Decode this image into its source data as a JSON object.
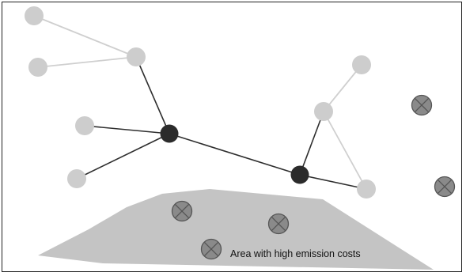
{
  "colors": {
    "frame": "#222222",
    "area": "#c4c4c4",
    "light_node": "#cdcdcd",
    "light_edge": "#cfcfcf",
    "dark_node": "#2b2b2b",
    "dark_edge": "#2e2e2e",
    "emission_fill": "#8a8a8a",
    "emission_stroke": "#555555"
  },
  "area": {
    "label": "Area with high emission costs"
  },
  "nodes": [
    {
      "id": "n1",
      "kind": "light"
    },
    {
      "id": "n2",
      "kind": "light"
    },
    {
      "id": "n3",
      "kind": "light"
    },
    {
      "id": "n4",
      "kind": "light"
    },
    {
      "id": "n5",
      "kind": "light"
    },
    {
      "id": "h1",
      "kind": "dark"
    },
    {
      "id": "h2",
      "kind": "dark"
    },
    {
      "id": "n6",
      "kind": "light"
    },
    {
      "id": "n7",
      "kind": "light"
    },
    {
      "id": "n8",
      "kind": "light"
    }
  ],
  "edges": [
    {
      "from": "n1",
      "to": "n3",
      "kind": "light"
    },
    {
      "from": "n2",
      "to": "n3",
      "kind": "light"
    },
    {
      "from": "n3",
      "to": "h1",
      "kind": "dark"
    },
    {
      "from": "n4",
      "to": "h1",
      "kind": "dark"
    },
    {
      "from": "n5",
      "to": "h1",
      "kind": "dark"
    },
    {
      "from": "h1",
      "to": "h2",
      "kind": "dark"
    },
    {
      "from": "h2",
      "to": "n7",
      "kind": "dark"
    },
    {
      "from": "h2",
      "to": "n8",
      "kind": "dark"
    },
    {
      "from": "n6",
      "to": "n7",
      "kind": "light"
    },
    {
      "from": "n7",
      "to": "n8",
      "kind": "light"
    }
  ],
  "emission_sites": [
    {
      "id": "e1",
      "icon": "x-circle-icon"
    },
    {
      "id": "e2",
      "icon": "x-circle-icon"
    },
    {
      "id": "e3",
      "icon": "x-circle-icon"
    },
    {
      "id": "e4",
      "icon": "x-circle-icon"
    },
    {
      "id": "e5",
      "icon": "x-circle-icon"
    }
  ]
}
